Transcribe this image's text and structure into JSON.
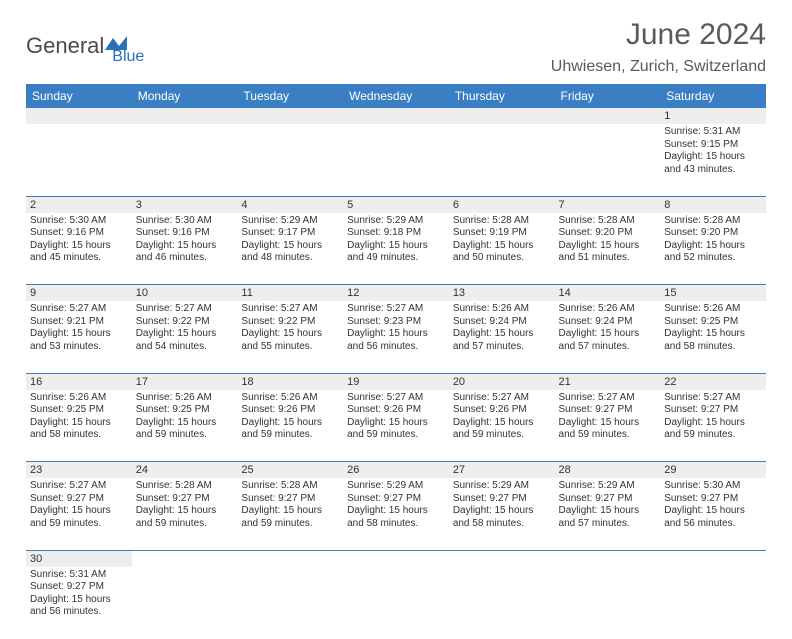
{
  "logo": {
    "text1": "General",
    "text2": "Blue"
  },
  "title": "June 2024",
  "location": "Uhwiesen, Zurich, Switzerland",
  "colors": {
    "header_bg": "#3a7fc4",
    "header_text": "#ffffff",
    "daynum_bg": "#eeeeee",
    "border": "#3a7fc4",
    "title_color": "#5a5a5a"
  },
  "weekdays": [
    "Sunday",
    "Monday",
    "Tuesday",
    "Wednesday",
    "Thursday",
    "Friday",
    "Saturday"
  ],
  "weeks": [
    {
      "nums": [
        "",
        "",
        "",
        "",
        "",
        "",
        "1"
      ],
      "details": [
        null,
        null,
        null,
        null,
        null,
        null,
        {
          "sunrise": "Sunrise: 5:31 AM",
          "sunset": "Sunset: 9:15 PM",
          "day1": "Daylight: 15 hours",
          "day2": "and 43 minutes."
        }
      ]
    },
    {
      "nums": [
        "2",
        "3",
        "4",
        "5",
        "6",
        "7",
        "8"
      ],
      "details": [
        {
          "sunrise": "Sunrise: 5:30 AM",
          "sunset": "Sunset: 9:16 PM",
          "day1": "Daylight: 15 hours",
          "day2": "and 45 minutes."
        },
        {
          "sunrise": "Sunrise: 5:30 AM",
          "sunset": "Sunset: 9:16 PM",
          "day1": "Daylight: 15 hours",
          "day2": "and 46 minutes."
        },
        {
          "sunrise": "Sunrise: 5:29 AM",
          "sunset": "Sunset: 9:17 PM",
          "day1": "Daylight: 15 hours",
          "day2": "and 48 minutes."
        },
        {
          "sunrise": "Sunrise: 5:29 AM",
          "sunset": "Sunset: 9:18 PM",
          "day1": "Daylight: 15 hours",
          "day2": "and 49 minutes."
        },
        {
          "sunrise": "Sunrise: 5:28 AM",
          "sunset": "Sunset: 9:19 PM",
          "day1": "Daylight: 15 hours",
          "day2": "and 50 minutes."
        },
        {
          "sunrise": "Sunrise: 5:28 AM",
          "sunset": "Sunset: 9:20 PM",
          "day1": "Daylight: 15 hours",
          "day2": "and 51 minutes."
        },
        {
          "sunrise": "Sunrise: 5:28 AM",
          "sunset": "Sunset: 9:20 PM",
          "day1": "Daylight: 15 hours",
          "day2": "and 52 minutes."
        }
      ]
    },
    {
      "nums": [
        "9",
        "10",
        "11",
        "12",
        "13",
        "14",
        "15"
      ],
      "details": [
        {
          "sunrise": "Sunrise: 5:27 AM",
          "sunset": "Sunset: 9:21 PM",
          "day1": "Daylight: 15 hours",
          "day2": "and 53 minutes."
        },
        {
          "sunrise": "Sunrise: 5:27 AM",
          "sunset": "Sunset: 9:22 PM",
          "day1": "Daylight: 15 hours",
          "day2": "and 54 minutes."
        },
        {
          "sunrise": "Sunrise: 5:27 AM",
          "sunset": "Sunset: 9:22 PM",
          "day1": "Daylight: 15 hours",
          "day2": "and 55 minutes."
        },
        {
          "sunrise": "Sunrise: 5:27 AM",
          "sunset": "Sunset: 9:23 PM",
          "day1": "Daylight: 15 hours",
          "day2": "and 56 minutes."
        },
        {
          "sunrise": "Sunrise: 5:26 AM",
          "sunset": "Sunset: 9:24 PM",
          "day1": "Daylight: 15 hours",
          "day2": "and 57 minutes."
        },
        {
          "sunrise": "Sunrise: 5:26 AM",
          "sunset": "Sunset: 9:24 PM",
          "day1": "Daylight: 15 hours",
          "day2": "and 57 minutes."
        },
        {
          "sunrise": "Sunrise: 5:26 AM",
          "sunset": "Sunset: 9:25 PM",
          "day1": "Daylight: 15 hours",
          "day2": "and 58 minutes."
        }
      ]
    },
    {
      "nums": [
        "16",
        "17",
        "18",
        "19",
        "20",
        "21",
        "22"
      ],
      "details": [
        {
          "sunrise": "Sunrise: 5:26 AM",
          "sunset": "Sunset: 9:25 PM",
          "day1": "Daylight: 15 hours",
          "day2": "and 58 minutes."
        },
        {
          "sunrise": "Sunrise: 5:26 AM",
          "sunset": "Sunset: 9:25 PM",
          "day1": "Daylight: 15 hours",
          "day2": "and 59 minutes."
        },
        {
          "sunrise": "Sunrise: 5:26 AM",
          "sunset": "Sunset: 9:26 PM",
          "day1": "Daylight: 15 hours",
          "day2": "and 59 minutes."
        },
        {
          "sunrise": "Sunrise: 5:27 AM",
          "sunset": "Sunset: 9:26 PM",
          "day1": "Daylight: 15 hours",
          "day2": "and 59 minutes."
        },
        {
          "sunrise": "Sunrise: 5:27 AM",
          "sunset": "Sunset: 9:26 PM",
          "day1": "Daylight: 15 hours",
          "day2": "and 59 minutes."
        },
        {
          "sunrise": "Sunrise: 5:27 AM",
          "sunset": "Sunset: 9:27 PM",
          "day1": "Daylight: 15 hours",
          "day2": "and 59 minutes."
        },
        {
          "sunrise": "Sunrise: 5:27 AM",
          "sunset": "Sunset: 9:27 PM",
          "day1": "Daylight: 15 hours",
          "day2": "and 59 minutes."
        }
      ]
    },
    {
      "nums": [
        "23",
        "24",
        "25",
        "26",
        "27",
        "28",
        "29"
      ],
      "details": [
        {
          "sunrise": "Sunrise: 5:27 AM",
          "sunset": "Sunset: 9:27 PM",
          "day1": "Daylight: 15 hours",
          "day2": "and 59 minutes."
        },
        {
          "sunrise": "Sunrise: 5:28 AM",
          "sunset": "Sunset: 9:27 PM",
          "day1": "Daylight: 15 hours",
          "day2": "and 59 minutes."
        },
        {
          "sunrise": "Sunrise: 5:28 AM",
          "sunset": "Sunset: 9:27 PM",
          "day1": "Daylight: 15 hours",
          "day2": "and 59 minutes."
        },
        {
          "sunrise": "Sunrise: 5:29 AM",
          "sunset": "Sunset: 9:27 PM",
          "day1": "Daylight: 15 hours",
          "day2": "and 58 minutes."
        },
        {
          "sunrise": "Sunrise: 5:29 AM",
          "sunset": "Sunset: 9:27 PM",
          "day1": "Daylight: 15 hours",
          "day2": "and 58 minutes."
        },
        {
          "sunrise": "Sunrise: 5:29 AM",
          "sunset": "Sunset: 9:27 PM",
          "day1": "Daylight: 15 hours",
          "day2": "and 57 minutes."
        },
        {
          "sunrise": "Sunrise: 5:30 AM",
          "sunset": "Sunset: 9:27 PM",
          "day1": "Daylight: 15 hours",
          "day2": "and 56 minutes."
        }
      ]
    },
    {
      "nums": [
        "30",
        "",
        "",
        "",
        "",
        "",
        ""
      ],
      "details": [
        {
          "sunrise": "Sunrise: 5:31 AM",
          "sunset": "Sunset: 9:27 PM",
          "day1": "Daylight: 15 hours",
          "day2": "and 56 minutes."
        },
        null,
        null,
        null,
        null,
        null,
        null
      ]
    }
  ]
}
